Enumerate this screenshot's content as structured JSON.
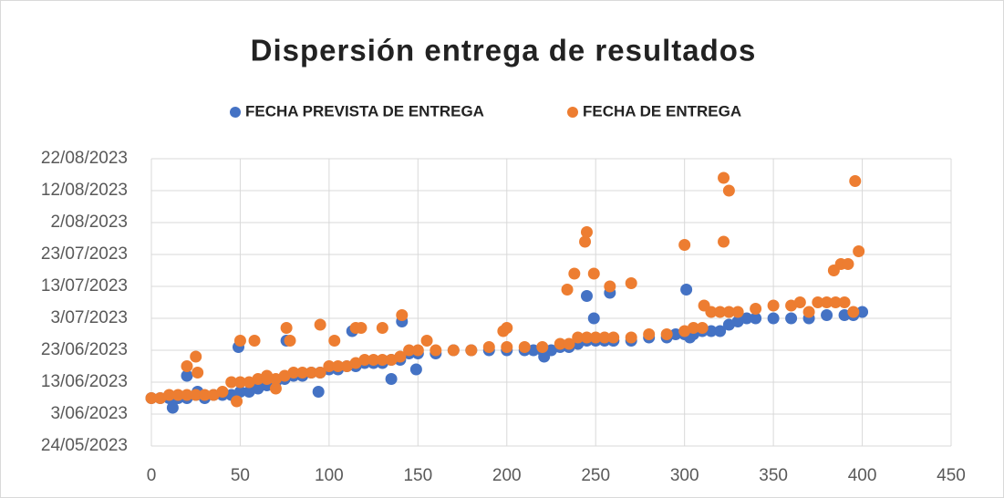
{
  "chart_data": {
    "type": "scatter",
    "title": "Dispersión entrega de resultados",
    "legend": "top",
    "grid": true,
    "xlim": [
      0,
      450
    ],
    "xticks": [
      0,
      50,
      100,
      150,
      200,
      250,
      300,
      350,
      400,
      450
    ],
    "ylim": [
      45070,
      45160
    ],
    "yticks": [
      {
        "value": 45070,
        "label": "24/05/2023"
      },
      {
        "value": 45080,
        "label": "3/06/2023"
      },
      {
        "value": 45090,
        "label": "13/06/2023"
      },
      {
        "value": 45100,
        "label": "23/06/2023"
      },
      {
        "value": 45110,
        "label": "3/07/2023"
      },
      {
        "value": 45120,
        "label": "13/07/2023"
      },
      {
        "value": 45130,
        "label": "23/07/2023"
      },
      {
        "value": 45140,
        "label": "2/08/2023"
      },
      {
        "value": 45150,
        "label": "12/08/2023"
      },
      {
        "value": 45160,
        "label": "22/08/2023"
      }
    ],
    "series": [
      {
        "name": "FECHA PREVISTA DE ENTREGA",
        "color": "#4472c4",
        "x": [
          0,
          5,
          10,
          12,
          15,
          20,
          25,
          30,
          35,
          40,
          45,
          50,
          55,
          60,
          65,
          70,
          75,
          80,
          85,
          90,
          95,
          100,
          105,
          110,
          115,
          120,
          125,
          130,
          135,
          140,
          145,
          150,
          160,
          170,
          180,
          190,
          200,
          210,
          215,
          220,
          225,
          230,
          235,
          240,
          245,
          250,
          255,
          260,
          270,
          280,
          290,
          295,
          300,
          305,
          310,
          315,
          320,
          325,
          330,
          335,
          340,
          350,
          360,
          370,
          380,
          390,
          395,
          400,
          20,
          26,
          49,
          76,
          94,
          113,
          135,
          141,
          149,
          221,
          245,
          249,
          258,
          260,
          301,
          303
        ],
        "values": [
          45085,
          45085,
          45085,
          45082,
          45085,
          45085,
          45086,
          45085,
          45086,
          45086,
          45086,
          45087,
          45087,
          45088,
          45089,
          45090,
          45091,
          45092,
          45092,
          45093,
          45093,
          45094,
          45094,
          45095,
          45095,
          45096,
          45096,
          45096,
          45097,
          45097,
          45099,
          45099,
          45099,
          45100,
          45100,
          45100,
          45100,
          45100,
          45100,
          45100,
          45100,
          45101,
          45101,
          45102,
          45103,
          45103,
          45103,
          45103,
          45103,
          45104,
          45104,
          45105,
          45105,
          45105,
          45106,
          45106,
          45106,
          45108,
          45109,
          45110,
          45110,
          45110,
          45110,
          45110,
          45111,
          45111,
          45111,
          45112,
          45092,
          45087,
          45101,
          45103,
          45087,
          45106,
          45091,
          45109,
          45094,
          45098,
          45117,
          45110,
          45118,
          45103,
          45119,
          45104
        ]
      },
      {
        "name": "FECHA DE ENTREGA",
        "color": "#ed7d31",
        "x": [
          0,
          5,
          10,
          15,
          20,
          25,
          30,
          35,
          40,
          45,
          50,
          55,
          60,
          65,
          70,
          75,
          80,
          85,
          90,
          95,
          100,
          105,
          110,
          115,
          120,
          125,
          130,
          135,
          140,
          145,
          150,
          160,
          170,
          180,
          190,
          200,
          210,
          220,
          230,
          235,
          240,
          245,
          250,
          255,
          260,
          270,
          280,
          290,
          300,
          305,
          310,
          315,
          320,
          325,
          330,
          340,
          350,
          360,
          365,
          370,
          375,
          380,
          385,
          390,
          395,
          20,
          25,
          26,
          48,
          50,
          58,
          65,
          70,
          76,
          78,
          95,
          103,
          115,
          118,
          130,
          141,
          155,
          198,
          200,
          234,
          238,
          244,
          245,
          249,
          258,
          270,
          300,
          311,
          322,
          322,
          325,
          384,
          388,
          392,
          396,
          398
        ],
        "values": [
          45085,
          45085,
          45086,
          45086,
          45086,
          45086,
          45086,
          45086,
          45087,
          45090,
          45090,
          45090,
          45091,
          45091,
          45091,
          45092,
          45093,
          45093,
          45093,
          45093,
          45095,
          45095,
          45095,
          45096,
          45097,
          45097,
          45097,
          45097,
          45098,
          45100,
          45100,
          45100,
          45100,
          45100,
          45101,
          45101,
          45101,
          45101,
          45102,
          45102,
          45104,
          45104,
          45104,
          45104,
          45104,
          45104,
          45105,
          45105,
          45106,
          45107,
          45107,
          45112,
          45112,
          45112,
          45112,
          45113,
          45114,
          45114,
          45115,
          45112,
          45115,
          45115,
          45115,
          45115,
          45112,
          45095,
          45098,
          45093,
          45084,
          45103,
          45103,
          45092,
          45088,
          45107,
          45103,
          45108,
          45103,
          45107,
          45107,
          45107,
          45111,
          45103,
          45106,
          45107,
          45119,
          45124,
          45134,
          45137,
          45124,
          45120,
          45121,
          45133,
          45114,
          45134,
          45154,
          45150,
          45125,
          45127,
          45127,
          45153,
          45131
        ]
      }
    ]
  }
}
